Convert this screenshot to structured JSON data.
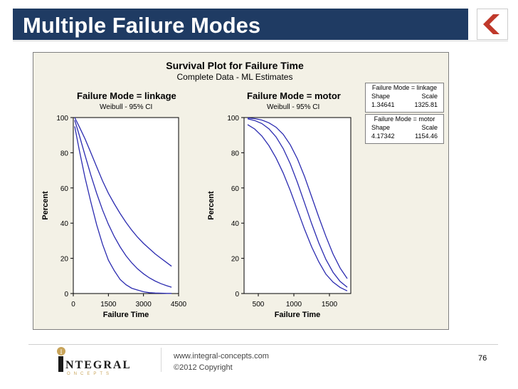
{
  "slide": {
    "title": "Multiple Failure Modes",
    "page_number": "76",
    "footer_url": "www.integral-concepts.com",
    "footer_copyright": "©2012 Copyright",
    "logo_text": "INTEGRAL",
    "logo_sub": "CONCEPTS",
    "colors": {
      "title_bar": "#1f3b63",
      "accent": "#c0392b",
      "curve": "#2b2bb0",
      "plot_bg": "#f3f1e6"
    }
  },
  "figure": {
    "title": "Survival Plot for Failure Time",
    "subtitle": "Complete Data - ML Estimates",
    "legend": [
      {
        "header": "Failure Mode = linkage",
        "col1": "Shape",
        "col2": "Scale",
        "v1": "1.34641",
        "v2": "1325.81"
      },
      {
        "header": "Failure Mode = motor",
        "col1": "Shape",
        "col2": "Scale",
        "v1": "4.17342",
        "v2": "1154.46"
      }
    ]
  },
  "chart_data": [
    {
      "type": "line",
      "title": "Failure Mode = linkage",
      "subtitle": "Weibull - 95% CI",
      "xlabel": "Failure Time",
      "ylabel": "Percent",
      "xlim": [
        0,
        4500
      ],
      "ylim": [
        0,
        100
      ],
      "xticks": [
        0,
        1500,
        3000,
        4500
      ],
      "yticks": [
        0,
        20,
        40,
        60,
        80,
        100
      ],
      "x": [
        60,
        250,
        500,
        750,
        1000,
        1250,
        1500,
        1750,
        2000,
        2250,
        2500,
        2750,
        3000,
        3250,
        3500,
        3750,
        4000,
        4200
      ],
      "series": [
        {
          "values": [
            98.5,
            90.3,
            78.7,
            67.3,
            56.9,
            47.5,
            39.4,
            32.4,
            26.5,
            21.5,
            17.4,
            14.0,
            11.2,
            8.9,
            7.1,
            5.6,
            4.4,
            3.6
          ]
        },
        {
          "values": [
            100,
            95,
            88,
            80,
            72,
            64,
            57,
            51,
            45.5,
            40.5,
            36,
            32,
            28.5,
            25.5,
            22.5,
            20,
            17.5,
            15.5
          ]
        },
        {
          "values": [
            95,
            82,
            66,
            52,
            39,
            28,
            19,
            13,
            8,
            5,
            3,
            2,
            1,
            0.5,
            0.3,
            0.2,
            0.1,
            0.1
          ]
        }
      ]
    },
    {
      "type": "line",
      "title": "Failure Mode = motor",
      "subtitle": "Weibull - 95% CI",
      "xlabel": "Failure Time",
      "ylabel": "Percent",
      "xlim": [
        300,
        1800
      ],
      "ylim": [
        0,
        100
      ],
      "xticks": [
        500,
        1000,
        1500
      ],
      "yticks": [
        0,
        20,
        40,
        60,
        80,
        100
      ],
      "x": [
        350,
        450,
        550,
        650,
        750,
        850,
        950,
        1050,
        1150,
        1250,
        1350,
        1450,
        1550,
        1650,
        1750
      ],
      "series": [
        {
          "values": [
            99.3,
            98.3,
            96.6,
            93.6,
            89.0,
            82.4,
            73.7,
            63.1,
            51.5,
            39.7,
            28.8,
            19.4,
            12.1,
            6.9,
            3.6
          ]
        },
        {
          "values": [
            99.8,
            99.4,
            98.6,
            97,
            94.5,
            90.5,
            84.5,
            76.5,
            66.5,
            55,
            43.5,
            32.5,
            22.5,
            14.5,
            8.5
          ]
        },
        {
          "values": [
            96,
            93.5,
            89.5,
            84,
            77,
            68.5,
            58.5,
            47.5,
            36.5,
            26.5,
            18,
            11,
            6.5,
            3.5,
            1.5
          ]
        }
      ]
    }
  ]
}
